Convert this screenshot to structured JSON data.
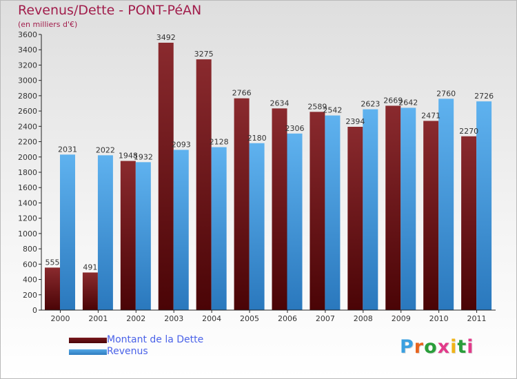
{
  "title": "Revenus/Dette - PONT-PéAN",
  "subtitle": "(en milliers d'€)",
  "logo": {
    "text": "Proxiti",
    "letter_colors": [
      "#3aa0e0",
      "#e8641e",
      "#2a9e3a",
      "#e23a8a",
      "#f0b418",
      "#2a9e3a",
      "#e23a8a"
    ]
  },
  "colors": {
    "dette": "#7a1a1f",
    "dette_dark": "#4a0406",
    "revenus": "#56a9e8",
    "revenus_dark": "#2e7cc0",
    "text": "#333333",
    "legend_text": "#4a62e8"
  },
  "chart_data": {
    "type": "bar",
    "title": "Revenus/Dette - PONT-PéAN",
    "ylabel": "(en milliers d'€)",
    "categories": [
      "2000",
      "2001",
      "2002",
      "2003",
      "2004",
      "2005",
      "2006",
      "2007",
      "2008",
      "2009",
      "2010",
      "2011"
    ],
    "series": [
      {
        "name": "Montant de la Dette",
        "values": [
          555,
          491,
          1948,
          3492,
          3275,
          2766,
          2634,
          2589,
          2394,
          2669,
          2471,
          2270
        ]
      },
      {
        "name": "Revenus",
        "values": [
          2031,
          2022,
          1932,
          2093,
          2128,
          2180,
          2306,
          2542,
          2623,
          2642,
          2760,
          2726
        ]
      }
    ],
    "ylim": [
      0,
      3600
    ],
    "yticks": [
      "0",
      "200",
      "400",
      "600",
      "800",
      "1000",
      "1200",
      "1400",
      "1600",
      "1800",
      "2000",
      "2200",
      "2400",
      "2600",
      "2800",
      "3000",
      "3200",
      "3400",
      "3600"
    ],
    "grid": false,
    "legend_position": "bottom-left"
  }
}
